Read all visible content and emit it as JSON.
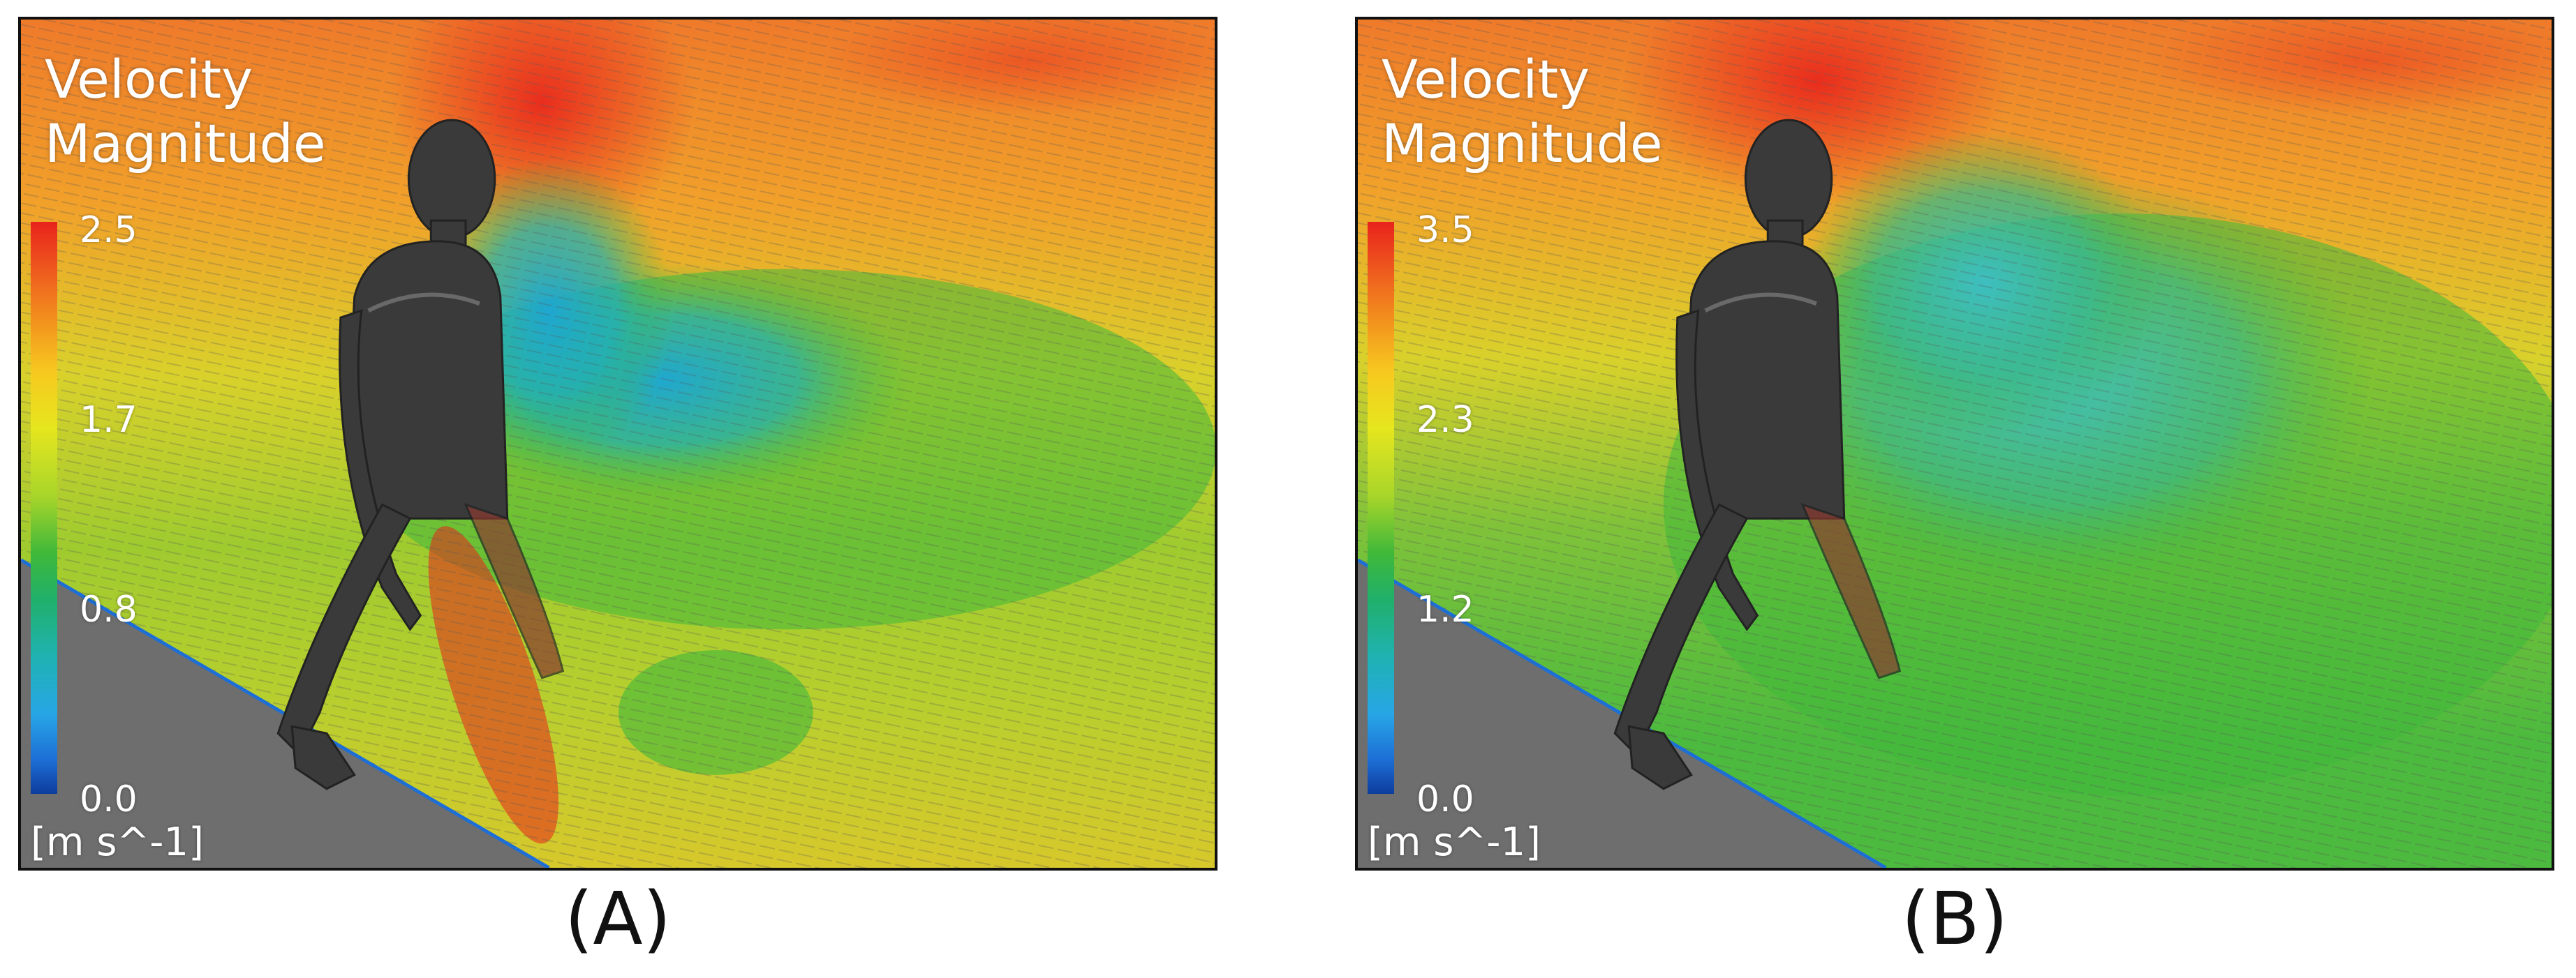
{
  "panels": [
    {
      "legend_title_line1": "Velocity",
      "legend_title_line2": "Magnitude",
      "ticks": [
        "2.5",
        "1.7",
        "0.8",
        "0.0"
      ],
      "units": "[m s^-1]",
      "caption": "(A)",
      "scale_max": 2.5,
      "scale_min": 0.0
    },
    {
      "legend_title_line1": "Velocity",
      "legend_title_line2": "Magnitude",
      "ticks": [
        "3.5",
        "2.3",
        "1.2",
        "0.0"
      ],
      "units": "[m s^-1]",
      "caption": "(B)",
      "scale_max": 3.5,
      "scale_min": 0.0
    }
  ],
  "colors": {
    "scale_high": "#e8231c",
    "scale_mid_high": "#f7c81f",
    "scale_mid": "#3fb83a",
    "scale_mid_low": "#27a6e6",
    "scale_low": "#0d3c9c",
    "floor": "#6e6e6e",
    "mannequin": "#3a3a3a"
  }
}
